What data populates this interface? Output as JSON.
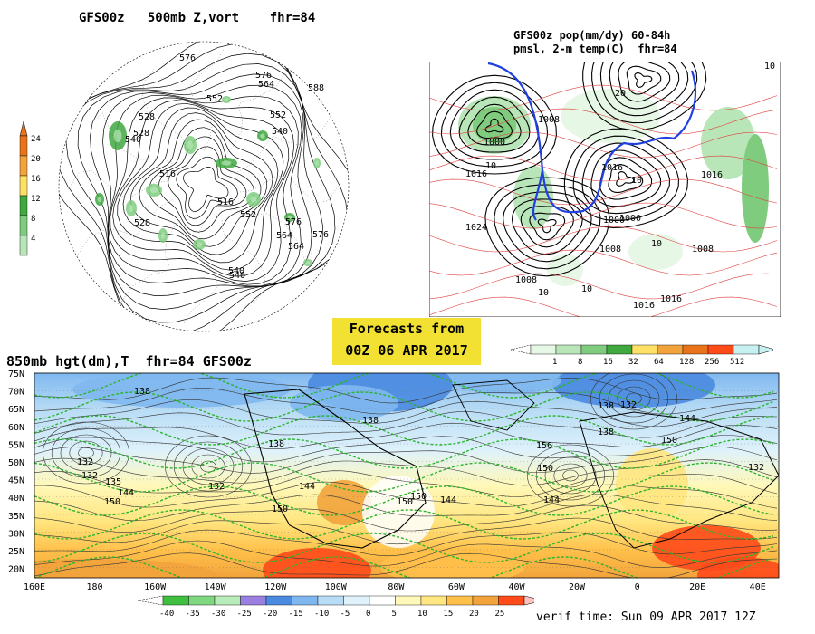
{
  "panels": {
    "top_left": {
      "title": "GFS00z   500mb Z,vort    fhr=84",
      "contour_labels": [
        "576",
        "564",
        "552",
        "528",
        "540",
        "516",
        "552",
        "540",
        "528",
        "564",
        "576",
        "576",
        "588",
        "540",
        "528",
        "516",
        "552",
        "540",
        "564",
        "576"
      ],
      "colorbar": {
        "ticks": [
          "24",
          "20",
          "16",
          "12",
          "8",
          "4"
        ],
        "colors": [
          "#e8731a",
          "#f2a33c",
          "#ffe066",
          "#3fa83f",
          "#7fcc7f",
          "#b8e6b8"
        ]
      }
    },
    "top_right": {
      "title_line1": "GFS00z pop(mm/dy) 60-84h",
      "title_line2": "pmsl, 2-m temp(C)  fhr=84",
      "contour_labels": [
        "1000",
        "1008",
        "1016",
        "1024",
        "1016",
        "1000",
        "1008",
        "1016",
        "1000",
        "1008",
        "1016",
        "1016",
        "1008"
      ],
      "temp_labels": [
        "10",
        "10",
        "10",
        "10",
        "20",
        "10",
        "10"
      ],
      "colorbar": {
        "ticks": [
          "1",
          "8",
          "16",
          "32",
          "64",
          "128",
          "256",
          "512"
        ],
        "colors": [
          "#e6f7e6",
          "#b8e6b8",
          "#7fcc7f",
          "#3fa83f",
          "#ffe066",
          "#f2a33c",
          "#e8731a",
          "#ff4a1a",
          "#c7f0f0"
        ]
      }
    },
    "bottom": {
      "title": "850mb hgt(dm),T  fhr=84 GFS00z",
      "lat_labels": [
        "75N",
        "70N",
        "65N",
        "60N",
        "55N",
        "50N",
        "45N",
        "40N",
        "35N",
        "30N",
        "25N",
        "20N"
      ],
      "lon_labels": [
        "160E",
        "180",
        "160W",
        "140W",
        "120W",
        "100W",
        "80W",
        "60W",
        "40W",
        "20W",
        "0",
        "20E",
        "40E"
      ],
      "height_labels": [
        "132",
        "132",
        "138",
        "132",
        "135",
        "144",
        "150",
        "144",
        "150",
        "150",
        "138",
        "144",
        "150",
        "138",
        "156",
        "150",
        "138",
        "132",
        "144",
        "150",
        "138",
        "132",
        "144"
      ],
      "colorbar": {
        "ticks": [
          "-40",
          "-35",
          "-30",
          "-25",
          "-20",
          "-15",
          "-10",
          "-5",
          "0",
          "5",
          "10",
          "15",
          "20",
          "25"
        ],
        "colors": [
          "#3fbf3f",
          "#7fd87f",
          "#b8ecb8",
          "#9a7fe0",
          "#4a8ae0",
          "#7fb8f0",
          "#b8dcf5",
          "#dff2fb",
          "#ffffff",
          "#fff8b8",
          "#ffe680",
          "#ffc04a",
          "#f2a33c",
          "#ff4a1a"
        ]
      }
    }
  },
  "banner": {
    "line1": "Forecasts from",
    "line2": "00Z 06 APR 2017"
  },
  "verif_time": "verif time: Sun 09 APR 2017 12Z"
}
